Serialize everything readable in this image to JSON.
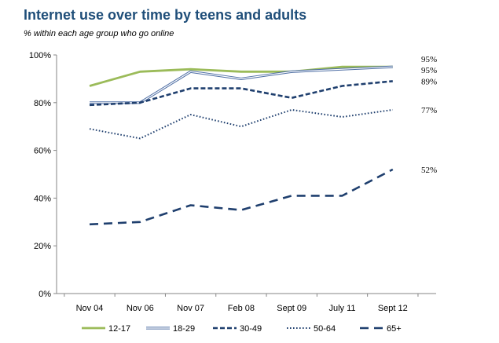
{
  "header": {
    "title": "Internet use over time by teens and adults",
    "subtitle": "% within each age group who go online"
  },
  "chart_data": {
    "type": "line",
    "title": "Internet use over time by teens and adults",
    "subtitle": "% within each age group who go online",
    "categories": [
      "Nov 04",
      "Nov 06",
      "Nov 07",
      "Feb 08",
      "Sept 09",
      "July 11",
      "Sept 12"
    ],
    "yticks": [
      "0%",
      "20%",
      "40%",
      "60%",
      "80%",
      "100%"
    ],
    "ylim": [
      0,
      100
    ],
    "grid": false,
    "legend_position": "bottom",
    "series": [
      {
        "name": "12-17",
        "values": [
          87,
          93,
          94,
          93,
          93,
          95,
          95
        ],
        "end_label": "95%",
        "color": "#9bbb59",
        "style": "solid"
      },
      {
        "name": "18-29",
        "values": [
          80,
          80,
          93,
          90,
          93,
          94,
          95
        ],
        "end_label": "95%",
        "color": "#4f6fa5",
        "style": "double"
      },
      {
        "name": "30-49",
        "values": [
          79,
          80,
          86,
          86,
          82,
          87,
          89
        ],
        "end_label": "89%",
        "color": "#1f3f6e",
        "style": "dashed"
      },
      {
        "name": "50-64",
        "values": [
          69,
          65,
          75,
          70,
          77,
          74,
          77
        ],
        "end_label": "77%",
        "color": "#1f3f6e",
        "style": "dotted"
      },
      {
        "name": "65+",
        "values": [
          29,
          30,
          37,
          35,
          41,
          41,
          52
        ],
        "end_label": "52%",
        "color": "#1f3f6e",
        "style": "longdash"
      }
    ]
  }
}
